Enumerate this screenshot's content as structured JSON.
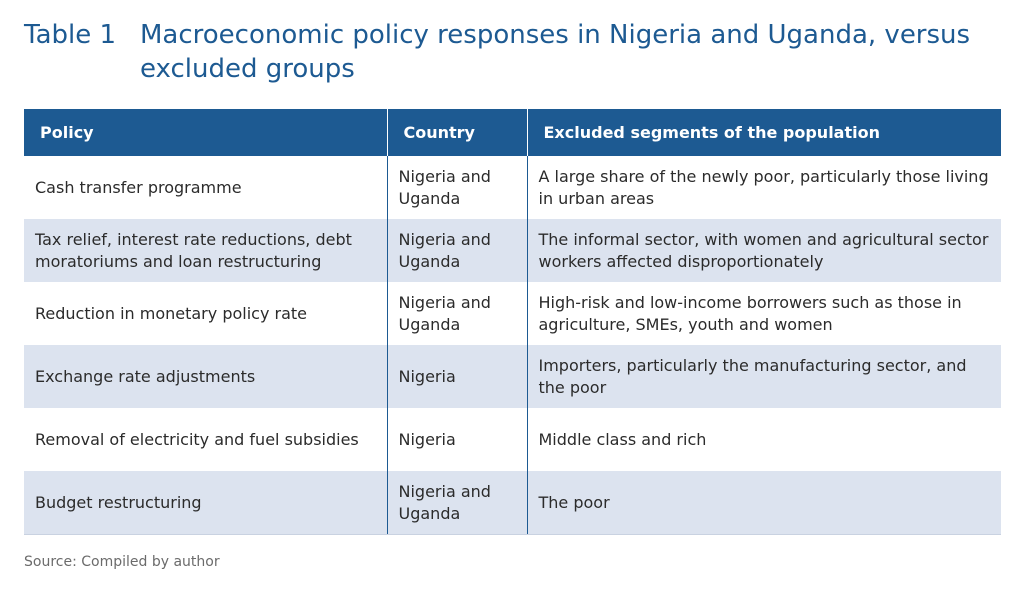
{
  "title": {
    "number": "Table 1",
    "text": "Macroeconomic policy responses in Nigeria and Uganda, versus excluded groups"
  },
  "table": {
    "headers": [
      "Policy",
      "Country",
      "Excluded segments of the population"
    ],
    "rows": [
      [
        "Cash transfer programme",
        "Nigeria and Uganda",
        "A large share of the newly poor, particularly those living in urban areas"
      ],
      [
        "Tax relief, interest rate reductions, debt moratoriums and loan restructuring",
        "Nigeria and Uganda",
        "The informal sector, with women and agricultural sector workers affected disproportionately"
      ],
      [
        "Reduction in monetary policy rate",
        "Nigeria and Uganda",
        "High-risk and low-income borrowers such as those in agriculture, SMEs, youth and women"
      ],
      [
        "Exchange rate adjustments",
        "Nigeria",
        "Importers, particularly the manufacturing sector, and the poor"
      ],
      [
        "Removal of electricity and fuel subsidies",
        "Nigeria",
        "Middle class and rich"
      ],
      [
        "Budget restructuring",
        "Nigeria and Uganda",
        "The poor"
      ]
    ]
  },
  "source": "Source: Compiled by author",
  "colors": {
    "header_bg": "#1d5a92",
    "title": "#1d5a92",
    "alt_row": "#dce3ef"
  }
}
